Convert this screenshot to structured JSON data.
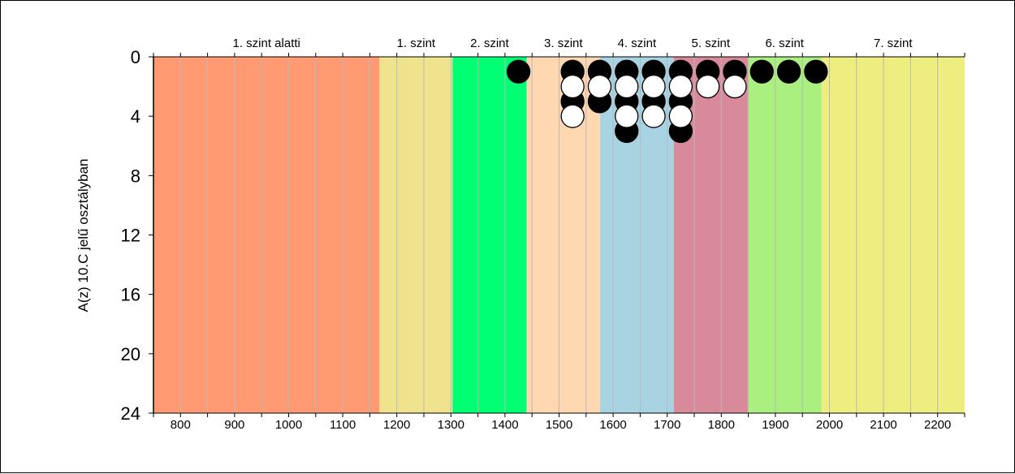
{
  "chart_data": {
    "type": "scatter",
    "title": "",
    "xlabel": "",
    "ylabel": "A(z) 10.C jelű osztályban",
    "xlim": [
      750,
      2250
    ],
    "ylim": [
      0,
      24
    ],
    "y_inverted": true,
    "grid": {
      "x_minor_step": 50,
      "horizontal": false
    },
    "x_ticks": [
      800,
      900,
      1000,
      1100,
      1200,
      1300,
      1400,
      1500,
      1600,
      1700,
      1800,
      1900,
      2000,
      2100,
      2200
    ],
    "y_ticks": [
      0,
      4,
      8,
      12,
      16,
      20,
      24
    ],
    "bands": [
      {
        "label": "1. szint alatti",
        "from": 750,
        "to": 1168,
        "color": "#FF9A72"
      },
      {
        "label": "1. szint",
        "from": 1168,
        "to": 1303,
        "color": "#F0E38E"
      },
      {
        "label": "2. szint",
        "from": 1303,
        "to": 1440,
        "color": "#00FF72"
      },
      {
        "label": "3. szint",
        "from": 1440,
        "to": 1576,
        "color": "#FFD7B1"
      },
      {
        "label": "4. szint",
        "from": 1576,
        "to": 1712,
        "color": "#A8D3E2"
      },
      {
        "label": "5. szint",
        "from": 1712,
        "to": 1849,
        "color": "#D98A9A"
      },
      {
        "label": "6. szint",
        "from": 1849,
        "to": 1985,
        "color": "#AAF080"
      },
      {
        "label": "7. szint",
        "from": 1985,
        "to": 2250,
        "color": "#EEEE80"
      }
    ],
    "series": [
      {
        "marker_color": "#000000",
        "points": [
          [
            1425,
            1
          ],
          [
            1525,
            1
          ],
          [
            1525,
            3
          ],
          [
            1575,
            1
          ],
          [
            1575,
            3
          ],
          [
            1625,
            1
          ],
          [
            1625,
            3
          ],
          [
            1625,
            5
          ],
          [
            1675,
            1
          ],
          [
            1675,
            3
          ],
          [
            1725,
            1
          ],
          [
            1725,
            3
          ],
          [
            1725,
            5
          ],
          [
            1775,
            1
          ],
          [
            1825,
            1
          ],
          [
            1875,
            1
          ],
          [
            1925,
            1
          ],
          [
            1975,
            1
          ]
        ]
      },
      {
        "marker_color": "#FFFFFF",
        "points": [
          [
            1525,
            2
          ],
          [
            1525,
            4
          ],
          [
            1575,
            2
          ],
          [
            1625,
            2
          ],
          [
            1625,
            4
          ],
          [
            1675,
            2
          ],
          [
            1675,
            4
          ],
          [
            1725,
            2
          ],
          [
            1725,
            4
          ],
          [
            1775,
            2
          ],
          [
            1825,
            2
          ]
        ]
      }
    ]
  }
}
